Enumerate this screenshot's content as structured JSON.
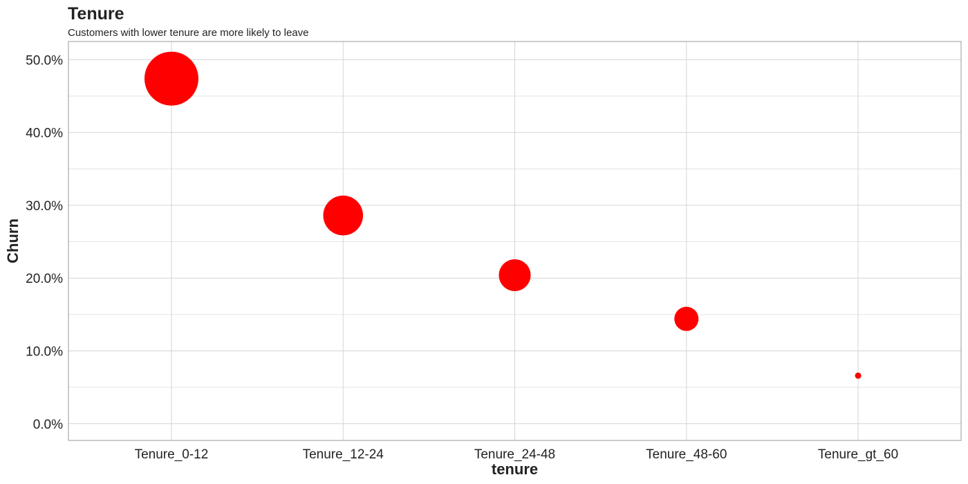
{
  "chart_data": {
    "type": "scatter",
    "title": "Tenure",
    "subtitle": "Customers with lower tenure are more likely to leave",
    "xlabel": "tenure",
    "ylabel": "Churn",
    "categories": [
      "Tenure_0-12",
      "Tenure_12-24",
      "Tenure_24-48",
      "Tenure_48-60",
      "Tenure_gt_60"
    ],
    "values": [
      47.4,
      28.6,
      20.4,
      14.4,
      6.6
    ],
    "y_ticks": [
      0,
      10,
      20,
      30,
      40,
      50
    ],
    "y_tick_labels": [
      "0.0%",
      "10.0%",
      "20.0%",
      "30.0%",
      "40.0%",
      "50.0%"
    ],
    "ylim": [
      -2.3,
      52.5
    ],
    "point_size_by": "value",
    "point_color": "#ff0000",
    "grid": true,
    "legend": "none"
  }
}
